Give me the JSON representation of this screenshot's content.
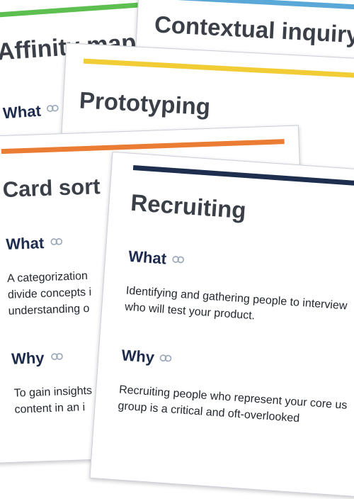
{
  "colors": {
    "affinity": "#5cbf4f",
    "contextual": "#5aa8d8",
    "prototyping": "#f2cc35",
    "card_sort": "#ea7c33",
    "recruiting": "#1e2e4e"
  },
  "cards": {
    "affinity": {
      "title": "Affinity mapp",
      "what": "What"
    },
    "contextual": {
      "title": "Contextual inquiry"
    },
    "prototyping": {
      "title": "Prototyping"
    },
    "card_sort": {
      "title": "Card sort",
      "what": "What",
      "what_lines": [
        "A categorization",
        "divide concepts i",
        "understanding o"
      ],
      "why": "Why",
      "why_lines": [
        "To gain insights",
        "content in an i"
      ]
    },
    "recruiting": {
      "title": "Recruiting",
      "what": "What",
      "what_lines": [
        "Identifying and gathering people to interview",
        "who will test your product."
      ],
      "why": "Why",
      "why_lines": [
        "Recruiting people who represent your core us",
        "group is a critical and oft-overlooked"
      ]
    }
  },
  "icons": {
    "anchor_link": "link-icon"
  }
}
